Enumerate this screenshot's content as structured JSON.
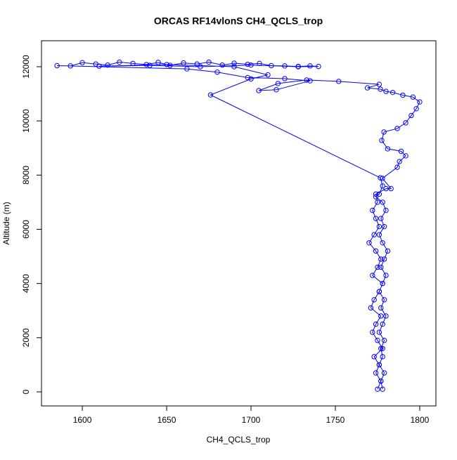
{
  "chart_data": {
    "type": "line",
    "title": "ORCAS RF14vlonS CH4_QCLS_trop",
    "xlabel": "CH4_QCLS_trop",
    "ylabel": "Altitude (m)",
    "color": "#0000ff",
    "markers": true,
    "x": [
      1775,
      1777,
      1774,
      1776,
      1773,
      1778,
      1775,
      1772,
      1774,
      1777,
      1771,
      1773,
      1776,
      1778,
      1772,
      1775,
      1777,
      1774,
      1770,
      1773,
      1776,
      1774,
      1772,
      1775,
      1774,
      1780,
      1783,
      1777.9,
      1786.7,
      1788,
      1791.7,
      1789,
      1781,
      1777.5,
      1778.8,
      1786.7,
      1791.7,
      1795,
      1798,
      1800,
      1796,
      1790,
      1784,
      1780,
      1776.7,
      1769,
      1776,
      1752,
      1733,
      1716,
      1704.6,
      1715,
      1735,
      1720,
      1698,
      1680,
      1662,
      1585,
      1593,
      1600,
      1608,
      1615,
      1622,
      1630,
      1638,
      1645,
      1652,
      1660,
      1668,
      1675,
      1683,
      1690,
      1698,
      1705,
      1712,
      1720,
      1728,
      1735,
      1740,
      1728,
      1700,
      1670,
      1640,
      1610,
      1650,
      1690,
      1710,
      1700,
      1676,
      1776.7,
      1778,
      1776,
      1774,
      1778,
      1780,
      1777,
      1779,
      1776,
      1778,
      1781,
      1779,
      1777,
      1780,
      1778,
      1776,
      1779,
      1777,
      1780,
      1778,
      1776,
      1779,
      1777,
      1778,
      1776,
      1779,
      1777,
      1778
    ],
    "values": [
      100,
      400,
      700,
      1000,
      1300,
      1600,
      1900,
      2200,
      2500,
      2800,
      3100,
      3400,
      3700,
      4000,
      4300,
      4600,
      4900,
      5200,
      5500,
      5800,
      6100,
      6400,
      6700,
      7000,
      7300,
      7500,
      7500,
      7880,
      8290,
      8500,
      8710,
      8880,
      8970,
      9280,
      9590,
      9720,
      9930,
      10200,
      10450,
      10700,
      10880,
      10950,
      11050,
      11090,
      11170,
      11220,
      11350,
      11460,
      11510,
      11380,
      11120,
      11150,
      11480,
      11560,
      11600,
      11800,
      11920,
      12040,
      12030,
      12150,
      12100,
      12060,
      12170,
      12120,
      12080,
      12160,
      12050,
      12140,
      12100,
      12170,
      12060,
      12130,
      12090,
      12120,
      12040,
      12030,
      12010,
      12030,
      12010,
      12000,
      12060,
      12000,
      12050,
      12020,
      12080,
      12000,
      11700,
      11550,
      10960,
      7900,
      7600,
      7300,
      7200,
      7000,
      6700,
      6400,
      6100,
      5800,
      5500,
      5200,
      4900,
      4600,
      4300,
      4000,
      3700,
      3400,
      3100,
      2800,
      2500,
      2200,
      1900,
      1600,
      1300,
      1000,
      700,
      400,
      100
    ],
    "xlim": [
      1575.8,
      1809.6
    ],
    "ylim": [
      -518,
      12959
    ],
    "xticks": [
      1600,
      1650,
      1700,
      1750,
      1800
    ],
    "yticks": [
      0,
      2000,
      4000,
      6000,
      8000,
      10000,
      12000
    ]
  }
}
